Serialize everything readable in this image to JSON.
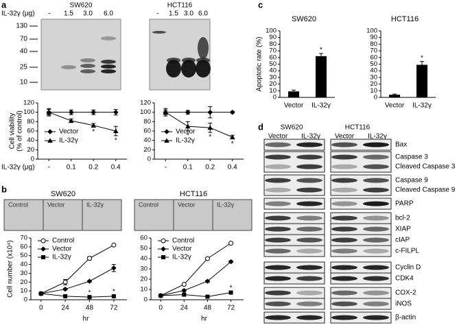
{
  "panel_labels": [
    "a",
    "b",
    "c",
    "d"
  ],
  "blot_a": {
    "lane_header": "IL-32γ (μg)",
    "cells": [
      "SW620",
      "HCT116"
    ],
    "lanes": [
      "-",
      "1.5",
      "3.0",
      "6.0"
    ],
    "markers": [
      "130",
      "70",
      "40",
      "25",
      "10"
    ]
  },
  "images_b": {
    "cells": [
      "SW620",
      "HCT116"
    ],
    "fields": [
      "Control",
      "Vector",
      "IL-32γ"
    ]
  },
  "chart_data": [
    {
      "type": "line",
      "ylabel": [
        "Cell viability",
        "(% of control)"
      ],
      "xlabel": "IL-32γ (μg)",
      "categories": [
        "-",
        "0.1",
        "0.2",
        "0.4"
      ],
      "ylim": [
        0,
        120
      ],
      "yticks": [
        0,
        20,
        40,
        60,
        80,
        100,
        120
      ],
      "legend": "lower-left",
      "series": [
        {
          "name": "Vector",
          "marker": "diamond",
          "color": "#000000",
          "values": [
            100,
            100,
            100,
            100
          ],
          "errors": [
            6,
            5,
            5,
            6
          ]
        },
        {
          "name": "IL-32γ",
          "marker": "triangle",
          "color": "#000000",
          "values": [
            100,
            82,
            72,
            60
          ],
          "errors": [
            8,
            4,
            4,
            10
          ],
          "significance": [
            null,
            null,
            "*",
            "*"
          ],
          "significance_position": "below"
        }
      ]
    },
    {
      "type": "line",
      "categories": [
        "-",
        "0.1",
        "0.2",
        "0.4"
      ],
      "ylim": [
        0,
        120
      ],
      "yticks": [
        0,
        20,
        40,
        60,
        80,
        100,
        120
      ],
      "legend": "lower-left",
      "series": [
        {
          "name": "Vector",
          "marker": "diamond",
          "color": "#000000",
          "values": [
            100,
            100,
            100,
            100
          ],
          "errors": [
            5,
            4,
            12,
            2
          ]
        },
        {
          "name": "IL-32γ",
          "marker": "triangle",
          "color": "#000000",
          "values": [
            100,
            70,
            67,
            47
          ],
          "errors": [
            8,
            10,
            10,
            4
          ],
          "significance": [
            null,
            "*",
            "*",
            "*"
          ],
          "significance_position": "below"
        }
      ]
    },
    {
      "type": "line",
      "title": "SW620",
      "ylabel": [
        "Cell number (x10⁴)"
      ],
      "xlabel": "hr",
      "x": [
        0,
        24,
        48,
        72
      ],
      "xlim": [
        -10,
        85
      ],
      "xticks": [
        0,
        24,
        48,
        72
      ],
      "ylim": [
        0,
        70
      ],
      "yticks": [
        0,
        10,
        20,
        30,
        40,
        50,
        60,
        70
      ],
      "legend": "upper-left",
      "series": [
        {
          "name": "Control",
          "marker": "circle-open",
          "color": "#000000",
          "values": [
            7,
            20,
            47,
            62
          ],
          "errors": [
            1,
            3,
            2,
            1
          ]
        },
        {
          "name": "Vector",
          "marker": "diamond",
          "color": "#000000",
          "values": [
            7,
            12,
            21,
            36
          ],
          "errors": [
            1,
            1,
            1,
            4
          ]
        },
        {
          "name": "IL-32γ",
          "marker": "square",
          "color": "#000000",
          "values": [
            7,
            4,
            3,
            4
          ],
          "errors": [
            1,
            1,
            1,
            1
          ],
          "significance": [
            null,
            null,
            "*",
            "*"
          ],
          "significance_position": "above"
        }
      ]
    },
    {
      "type": "line",
      "title": "HCT116",
      "xlabel": "hr",
      "x": [
        0,
        24,
        48,
        72
      ],
      "xlim": [
        -10,
        85
      ],
      "xticks": [
        0,
        24,
        48,
        72
      ],
      "ylim": [
        0,
        60
      ],
      "yticks": [
        0,
        10,
        20,
        30,
        40,
        50,
        60
      ],
      "legend": "upper-left",
      "series": [
        {
          "name": "Control",
          "marker": "circle-open",
          "color": "#000000",
          "values": [
            4,
            15,
            40,
            55
          ],
          "errors": [
            1,
            1,
            1,
            1
          ]
        },
        {
          "name": "Vector",
          "marker": "diamond",
          "color": "#000000",
          "values": [
            4,
            9,
            18,
            37
          ],
          "errors": [
            1,
            1,
            1,
            1
          ]
        },
        {
          "name": "IL-32γ",
          "marker": "square",
          "color": "#000000",
          "values": [
            4,
            5,
            3,
            7
          ],
          "errors": [
            1,
            1,
            1,
            1
          ],
          "significance": [
            null,
            null,
            null,
            "*"
          ],
          "significance_position": "above"
        }
      ]
    },
    {
      "type": "bar",
      "title": "SW620",
      "ylabel": [
        "Apoptotic rate (%)"
      ],
      "categories": [
        "Vector",
        "IL-32γ"
      ],
      "values": [
        9,
        62
      ],
      "errors": [
        2,
        4
      ],
      "significance": [
        null,
        "*"
      ],
      "color": "#000000",
      "ylim": [
        0,
        100
      ],
      "yticks": [
        0,
        10,
        20,
        30,
        40,
        50,
        60,
        70,
        80,
        90,
        100
      ]
    },
    {
      "type": "bar",
      "title": "HCT116",
      "categories": [
        "Vector",
        "IL-32γ"
      ],
      "values": [
        4,
        49
      ],
      "errors": [
        1,
        5
      ],
      "significance": [
        null,
        "*"
      ],
      "color": "#000000",
      "ylim": [
        0,
        100
      ],
      "yticks": [
        0,
        10,
        20,
        30,
        40,
        50,
        60,
        70,
        80,
        90,
        100
      ]
    }
  ],
  "blot_d": {
    "cells": [
      "SW620",
      "HCT116"
    ],
    "lanes": [
      "Vector",
      "IL-32γ"
    ],
    "proteins": [
      "Bax",
      "Caspase 3",
      "Cleaved Caspase 3",
      "Caspase 9",
      "Cleaved Caspase 9",
      "PARP",
      "bcl-2",
      "XIAP",
      "cIAP",
      "c-FILPL",
      "Cyclin D",
      "CDK4",
      "COX-2",
      "iNOS",
      "β-actin"
    ]
  }
}
